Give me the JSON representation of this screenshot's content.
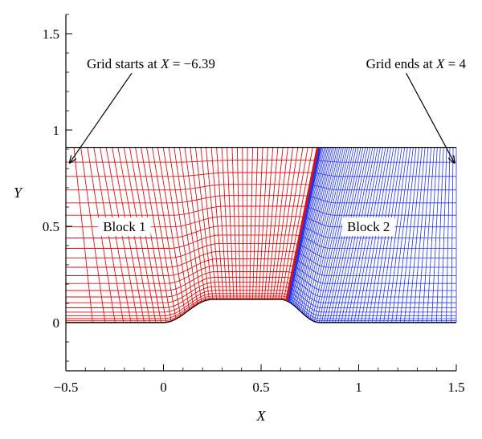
{
  "chart_data": {
    "type": "other",
    "xlabel": "X",
    "ylabel": "Y",
    "xlim": [
      -0.5,
      1.5
    ],
    "ylim": [
      -0.25,
      1.6
    ],
    "xticks": [
      {
        "value": -0.5,
        "label": "−0.5"
      },
      {
        "value": 0,
        "label": "0"
      },
      {
        "value": 0.5,
        "label": "0.5"
      },
      {
        "value": 1,
        "label": "1"
      },
      {
        "value": 1.5,
        "label": "1.5"
      }
    ],
    "yticks": [
      {
        "value": 0,
        "label": "0"
      },
      {
        "value": 0.5,
        "label": "0.5"
      },
      {
        "value": 1,
        "label": "1"
      },
      {
        "value": 1.5,
        "label": "1.5"
      }
    ],
    "top_boundary_y": 0.91,
    "bump": {
      "x_start": 0.0,
      "x_plateau_start": 0.25,
      "x_plateau_end": 0.6,
      "x_end": 0.8,
      "height": 0.12
    },
    "interface": {
      "x_top": 0.79,
      "x_bottom": 0.63
    },
    "blocks": [
      {
        "name": "Block 1",
        "color": "#dd1111",
        "label_x": -0.2,
        "label_y": 0.5
      },
      {
        "name": "Block 2",
        "color": "#2233ee",
        "label_x": 1.05,
        "label_y": 0.5
      }
    ],
    "annotations": [
      {
        "text": "Grid starts at ",
        "var": "X",
        "rest": " = −6.39",
        "text_x": -0.5,
        "text_y": 1.32,
        "arrow_to": [
          -0.48,
          0.83
        ]
      },
      {
        "text": "Grid ends at ",
        "var": "X",
        "rest": " = 4",
        "text_x": 1.15,
        "text_y": 1.32,
        "arrow_to": [
          1.49,
          0.83
        ]
      }
    ]
  }
}
